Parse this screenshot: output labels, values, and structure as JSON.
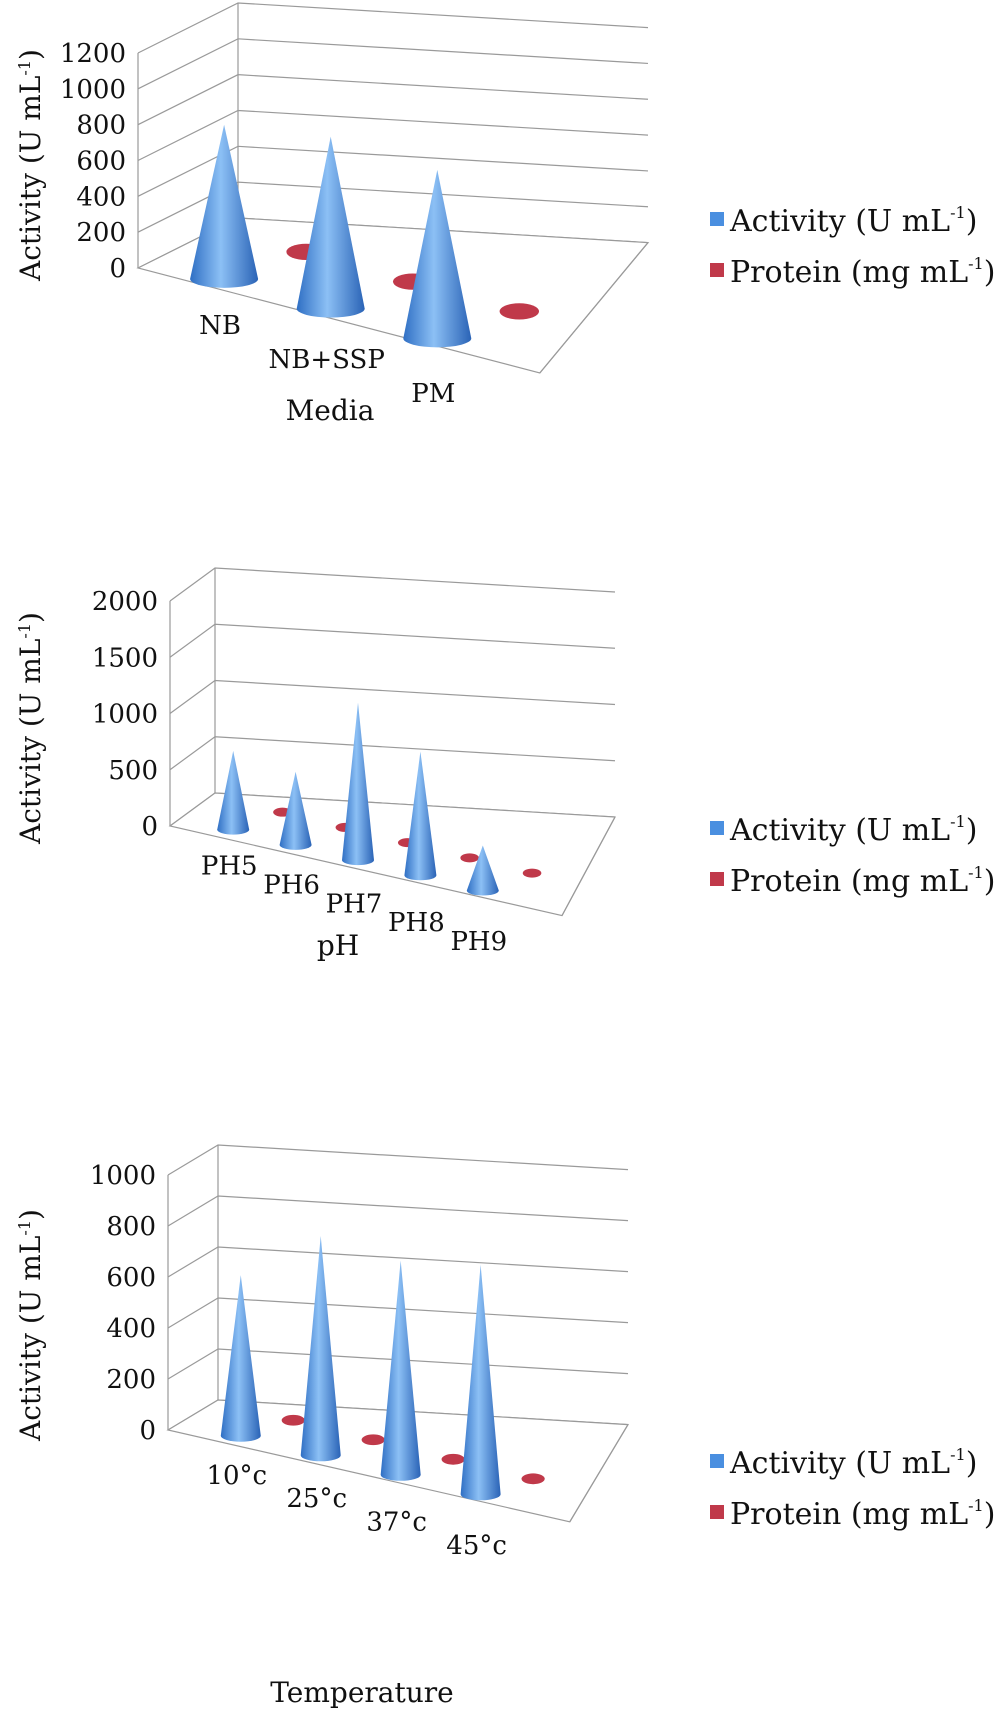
{
  "colors": {
    "activity": "#4a8fe0",
    "protein": "#c0394a",
    "grid": "#9a9a9a"
  },
  "legend": {
    "activity_base": "Activity (U mL",
    "protein_base": "Protein (mg mL",
    "sup": "-1",
    "close": ")"
  },
  "chart_data": [
    {
      "type": "bar",
      "shape": "cone-3d",
      "categories": [
        "NB",
        "NB+SSP",
        "PM"
      ],
      "series": [
        {
          "name": "Activity (U mL-1)",
          "values": [
            860,
            960,
            940
          ]
        },
        {
          "name": "Protein (mg mL-1)",
          "values": [
            8,
            8,
            8
          ]
        }
      ],
      "xlabel": "Media",
      "ylabel_base": "Activity (U mL",
      "ylabel_sup": "-1",
      "ylabel_close": ")",
      "yticks": [
        "0",
        "200",
        "400",
        "600",
        "800",
        "1000",
        "1200"
      ],
      "ylim": [
        0,
        1200
      ],
      "grid": true,
      "legend_position": "right"
    },
    {
      "type": "bar",
      "shape": "cone-3d",
      "categories": [
        "PH5",
        "PH6",
        "PH7",
        "PH8",
        "PH9"
      ],
      "series": [
        {
          "name": "Activity (U mL-1)",
          "values": [
            700,
            650,
            1400,
            1100,
            400
          ]
        },
        {
          "name": "Protein (mg mL-1)",
          "values": [
            8,
            8,
            8,
            8,
            8
          ]
        }
      ],
      "xlabel": "pH",
      "ylabel_base": "Activity (U mL",
      "ylabel_sup": "-1",
      "ylabel_close": ")",
      "yticks": [
        "0",
        "500",
        "1000",
        "1500",
        "2000"
      ],
      "ylim": [
        0,
        2000
      ],
      "grid": true,
      "legend_position": "right"
    },
    {
      "type": "bar",
      "shape": "cone-3d",
      "categories": [
        "10°c",
        "25°c",
        "37°c",
        "45°c"
      ],
      "series": [
        {
          "name": "Activity (U mL-1)",
          "values": [
            630,
            860,
            840,
            900
          ]
        },
        {
          "name": "Protein (mg mL-1)",
          "values": [
            8,
            8,
            8,
            8
          ]
        }
      ],
      "xlabel": "Temperature",
      "ylabel_base": "Activity (U mL",
      "ylabel_sup": "-1",
      "ylabel_close": ")",
      "yticks": [
        "0",
        "200",
        "400",
        "600",
        "800",
        "1000"
      ],
      "ylim": [
        0,
        1000
      ],
      "grid": true,
      "legend_position": "right"
    }
  ]
}
